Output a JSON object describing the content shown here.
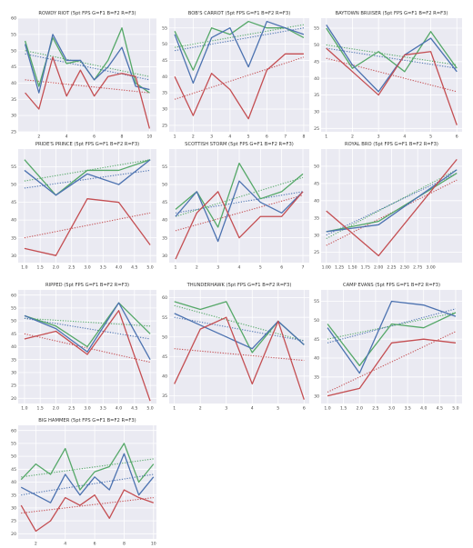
{
  "figure": {
    "colors": {
      "G": "#55a868",
      "B": "#4c72b0",
      "R": "#c44e52",
      "plot_bg": "#eaeaf2",
      "grid": "#ffffff"
    }
  },
  "chart_data": [
    {
      "type": "line",
      "title": "ROWDY RIOT (5pt FPS G=F1 B=F2 R=F3)",
      "x": [
        1,
        2,
        3,
        4,
        5,
        6,
        7,
        8,
        9,
        10
      ],
      "xlim": [
        0.5,
        10.5
      ],
      "ylim": [
        25,
        60
      ],
      "xticks": [
        "2",
        "4",
        "6",
        "8",
        "10"
      ],
      "xtick_vals": [
        2,
        4,
        6,
        8,
        10
      ],
      "yticks": [
        "25",
        "30",
        "35",
        "40",
        "45",
        "50",
        "55",
        "60"
      ],
      "ytick_vals": [
        25,
        30,
        35,
        40,
        45,
        50,
        55,
        60
      ],
      "series": [
        {
          "key": "G",
          "values": [
            53,
            39,
            54,
            46,
            47,
            41,
            47,
            57,
            40,
            37
          ]
        },
        {
          "key": "B",
          "values": [
            52,
            37,
            55,
            47,
            47,
            41,
            45,
            51,
            39,
            38
          ]
        },
        {
          "key": "R",
          "values": [
            37,
            32,
            48,
            36,
            44,
            36,
            42,
            43,
            42,
            26
          ]
        }
      ],
      "trends": [
        {
          "key": "G",
          "start": 50,
          "end": 42
        },
        {
          "key": "B",
          "start": 49,
          "end": 41
        },
        {
          "key": "R",
          "start": 41,
          "end": 37
        }
      ],
      "grid": true
    },
    {
      "type": "line",
      "title": "BOB'S CARROT (5pt FPS G=F1 B=F2 R=F3)",
      "x": [
        1,
        2,
        3,
        4,
        5,
        6,
        7,
        8
      ],
      "xlim": [
        0.7,
        8.3
      ],
      "ylim": [
        23,
        58
      ],
      "xticks": [
        "1",
        "2",
        "3",
        "4",
        "5",
        "6",
        "7",
        "8"
      ],
      "xtick_vals": [
        1,
        2,
        3,
        4,
        5,
        6,
        7,
        8
      ],
      "yticks": [
        "25",
        "30",
        "35",
        "40",
        "45",
        "50",
        "55"
      ],
      "ytick_vals": [
        25,
        30,
        35,
        40,
        45,
        50,
        55
      ],
      "series": [
        {
          "key": "G",
          "values": [
            54,
            42,
            55,
            53,
            57,
            55,
            55,
            52
          ]
        },
        {
          "key": "B",
          "values": [
            53,
            38,
            52,
            55,
            43,
            57,
            55,
            53
          ]
        },
        {
          "key": "R",
          "values": [
            40,
            28,
            41,
            36,
            27,
            42,
            47,
            47
          ]
        }
      ],
      "trends": [
        {
          "key": "G",
          "start": 49,
          "end": 56
        },
        {
          "key": "B",
          "start": 48,
          "end": 55
        },
        {
          "key": "R",
          "start": 33,
          "end": 46
        }
      ],
      "grid": true
    },
    {
      "type": "line",
      "title": "BAYTOWN BRUISER (5pt FPS G=F1 B=F2 R=F3)",
      "x": [
        1,
        2,
        3,
        4,
        5,
        6
      ],
      "xlim": [
        0.8,
        6.2
      ],
      "ylim": [
        24,
        58
      ],
      "xticks": [
        "1",
        "2",
        "3",
        "4",
        "5",
        "6"
      ],
      "xtick_vals": [
        1,
        2,
        3,
        4,
        5,
        6
      ],
      "yticks": [
        "25",
        "30",
        "35",
        "40",
        "45",
        "50",
        "55"
      ],
      "ytick_vals": [
        25,
        30,
        35,
        40,
        45,
        50,
        55
      ],
      "series": [
        {
          "key": "G",
          "values": [
            55,
            43,
            48,
            42,
            54,
            43
          ]
        },
        {
          "key": "B",
          "values": [
            56,
            44,
            36,
            47,
            52,
            42
          ]
        },
        {
          "key": "R",
          "values": [
            49,
            42,
            35,
            47,
            48,
            26
          ]
        }
      ],
      "trends": [
        {
          "key": "G",
          "start": 50,
          "end": 44
        },
        {
          "key": "B",
          "start": 49,
          "end": 43
        },
        {
          "key": "R",
          "start": 46,
          "end": 36
        }
      ],
      "grid": true
    },
    {
      "type": "line",
      "title": "PRIDE'S PRINCE (5pt FPS G=F1 B=F2 R=F3)",
      "x": [
        1.0,
        2.0,
        3.0,
        4.0,
        5.0
      ],
      "xlim": [
        0.8,
        5.2
      ],
      "ylim": [
        28,
        60
      ],
      "xticks": [
        "1.0",
        "1.5",
        "2.0",
        "2.5",
        "3.0",
        "3.5",
        "4.0",
        "4.5",
        "5.0"
      ],
      "xtick_vals": [
        1,
        1.5,
        2,
        2.5,
        3,
        3.5,
        4,
        4.5,
        5
      ],
      "yticks": [
        "30",
        "35",
        "40",
        "45",
        "50",
        "55"
      ],
      "ytick_vals": [
        30,
        35,
        40,
        45,
        50,
        55
      ],
      "series": [
        {
          "key": "G",
          "values": [
            57,
            47,
            54,
            54,
            57
          ]
        },
        {
          "key": "B",
          "values": [
            54,
            47,
            53,
            50,
            57
          ]
        },
        {
          "key": "R",
          "values": [
            32,
            30,
            46,
            45,
            33
          ]
        }
      ],
      "trends": [
        {
          "key": "G",
          "start": 51,
          "end": 57
        },
        {
          "key": "B",
          "start": 49,
          "end": 54
        },
        {
          "key": "R",
          "start": 35,
          "end": 42
        }
      ],
      "grid": true
    },
    {
      "type": "line",
      "title": "SCOTTISH STORM (5pt FPS G=F1 B=F2 R=F3)",
      "x": [
        1,
        2,
        3,
        4,
        5,
        6,
        7
      ],
      "xlim": [
        0.7,
        7.3
      ],
      "ylim": [
        28,
        60
      ],
      "xticks": [
        "1",
        "2",
        "3",
        "4",
        "5",
        "6",
        "7"
      ],
      "xtick_vals": [
        1,
        2,
        3,
        4,
        5,
        6,
        7
      ],
      "yticks": [
        "30",
        "35",
        "40",
        "45",
        "50",
        "55"
      ],
      "ytick_vals": [
        30,
        35,
        40,
        45,
        50,
        55
      ],
      "series": [
        {
          "key": "G",
          "values": [
            43,
            48,
            38,
            56,
            46,
            48,
            53
          ]
        },
        {
          "key": "B",
          "values": [
            41,
            48,
            34,
            51,
            45,
            42,
            48
          ]
        },
        {
          "key": "R",
          "values": [
            29,
            42,
            48,
            35,
            41,
            41,
            48
          ]
        }
      ],
      "trends": [
        {
          "key": "G",
          "start": 41,
          "end": 52
        },
        {
          "key": "B",
          "start": 42,
          "end": 48
        },
        {
          "key": "R",
          "start": 37,
          "end": 47
        }
      ],
      "grid": true
    },
    {
      "type": "line",
      "title": "ROYAL BRO (5pt FPS G=F1 B=F2 R=F3)",
      "x": [
        1.0,
        2.0,
        3.5
      ],
      "xlim": [
        0.9,
        3.6
      ],
      "ylim": [
        22,
        55
      ],
      "xticks": [
        "1.00",
        "1.25",
        "1.50",
        "1.75",
        "2.00",
        "2.25",
        "2.50",
        "2.75",
        "3.00"
      ],
      "xtick_vals": [
        1,
        1.25,
        1.5,
        1.75,
        2,
        2.25,
        2.5,
        2.75,
        3
      ],
      "yticks": [
        "25",
        "30",
        "35",
        "40",
        "45",
        "50"
      ],
      "ytick_vals": [
        25,
        30,
        35,
        40,
        45,
        50
      ],
      "series": [
        {
          "key": "G",
          "values": [
            31,
            34,
            48
          ]
        },
        {
          "key": "B",
          "values": [
            31,
            33,
            49
          ]
        },
        {
          "key": "R",
          "values": [
            37,
            24,
            52
          ]
        }
      ],
      "trends": [
        {
          "key": "G",
          "start": 29,
          "end": 49
        },
        {
          "key": "B",
          "start": 30,
          "end": 48
        },
        {
          "key": "R",
          "start": 27,
          "end": 46
        }
      ],
      "grid": true
    },
    {
      "type": "line",
      "title": "RIPPED (5pt FPS G=F1 B=F2 R=F3)",
      "x": [
        1.0,
        2.0,
        3.0,
        4.0,
        5.0
      ],
      "xlim": [
        0.8,
        5.2
      ],
      "ylim": [
        18,
        62
      ],
      "xticks": [
        "1.0",
        "1.5",
        "2.0",
        "2.5",
        "3.0",
        "3.5",
        "4.0",
        "4.5",
        "5.0"
      ],
      "xtick_vals": [
        1,
        1.5,
        2,
        2.5,
        3,
        3.5,
        4,
        4.5,
        5
      ],
      "yticks": [
        "20",
        "25",
        "30",
        "35",
        "40",
        "45",
        "50",
        "55",
        "60"
      ],
      "ytick_vals": [
        20,
        25,
        30,
        35,
        40,
        45,
        50,
        55,
        60
      ],
      "series": [
        {
          "key": "G",
          "values": [
            52,
            48,
            40,
            57,
            45
          ]
        },
        {
          "key": "B",
          "values": [
            52,
            47,
            38,
            57,
            35
          ]
        },
        {
          "key": "R",
          "values": [
            43,
            46,
            37,
            54,
            19
          ]
        }
      ],
      "trends": [
        {
          "key": "G",
          "start": 51,
          "end": 48
        },
        {
          "key": "B",
          "start": 51,
          "end": 43
        },
        {
          "key": "R",
          "start": 45,
          "end": 34
        }
      ],
      "grid": true
    },
    {
      "type": "line",
      "title": "THUNDERHAWK (5pt FPS G=F1 B=F2 R=F3)",
      "x": [
        1,
        2,
        3,
        4,
        5,
        6
      ],
      "xlim": [
        0.8,
        6.2
      ],
      "ylim": [
        33,
        62
      ],
      "xticks": [
        "1",
        "2",
        "3",
        "4",
        "5",
        "6"
      ],
      "xtick_vals": [
        1,
        2,
        3,
        4,
        5,
        6
      ],
      "yticks": [
        "35",
        "40",
        "45",
        "50",
        "55",
        "60"
      ],
      "ytick_vals": [
        35,
        40,
        45,
        50,
        55,
        60
      ],
      "series": [
        {
          "key": "G",
          "values": [
            59,
            57,
            59,
            46,
            54,
            48
          ]
        },
        {
          "key": "B",
          "values": [
            56,
            53,
            50,
            47,
            54,
            48
          ]
        },
        {
          "key": "R",
          "values": [
            38,
            52,
            55,
            38,
            54,
            34
          ]
        }
      ],
      "trends": [
        {
          "key": "G",
          "start": 58,
          "end": 49
        },
        {
          "key": "B",
          "start": 55,
          "end": 49
        },
        {
          "key": "R",
          "start": 47,
          "end": 44
        }
      ],
      "grid": true
    },
    {
      "type": "line",
      "title": "CAMP EVANS (5pt FPS G=F1 B=F2 R=F3)",
      "x": [
        1.0,
        2.0,
        3.0,
        4.0,
        5.0
      ],
      "xlim": [
        0.8,
        5.2
      ],
      "ylim": [
        28,
        58
      ],
      "xticks": [
        "1.0",
        "1.5",
        "2.0",
        "2.5",
        "3.0",
        "3.5",
        "4.0",
        "4.5",
        "5.0"
      ],
      "xtick_vals": [
        1,
        1.5,
        2,
        2.5,
        3,
        3.5,
        4,
        4.5,
        5
      ],
      "yticks": [
        "30",
        "35",
        "40",
        "45",
        "50",
        "55"
      ],
      "ytick_vals": [
        30,
        35,
        40,
        45,
        50,
        55
      ],
      "series": [
        {
          "key": "G",
          "values": [
            49,
            38,
            49,
            48,
            52
          ]
        },
        {
          "key": "B",
          "values": [
            48,
            36,
            55,
            54,
            51
          ]
        },
        {
          "key": "R",
          "values": [
            30,
            32,
            44,
            45,
            44
          ]
        }
      ],
      "trends": [
        {
          "key": "G",
          "start": 45,
          "end": 52
        },
        {
          "key": "B",
          "start": 44,
          "end": 53
        },
        {
          "key": "R",
          "start": 31,
          "end": 47
        }
      ],
      "grid": true
    },
    {
      "type": "line",
      "title": "BIG HAMMER (5pt FPS G=F1 B=F2 R=F3)",
      "x": [
        1,
        2,
        3,
        4,
        5,
        6,
        7,
        8,
        9,
        10
      ],
      "xlim": [
        0.8,
        10.2
      ],
      "ylim": [
        18,
        62
      ],
      "xticks": [
        "2",
        "4",
        "6",
        "8",
        "10"
      ],
      "xtick_vals": [
        2,
        4,
        6,
        8,
        10
      ],
      "yticks": [
        "20",
        "25",
        "30",
        "35",
        "40",
        "45",
        "50",
        "55",
        "60"
      ],
      "ytick_vals": [
        20,
        25,
        30,
        35,
        40,
        45,
        50,
        55,
        60
      ],
      "series": [
        {
          "key": "G",
          "values": [
            41,
            47,
            43,
            53,
            37,
            44,
            46,
            55,
            40,
            47
          ]
        },
        {
          "key": "B",
          "values": [
            38,
            35,
            32,
            43,
            35,
            42,
            37,
            51,
            35,
            42
          ]
        },
        {
          "key": "R",
          "values": [
            31,
            21,
            25,
            34,
            31,
            35,
            26,
            37,
            34,
            32
          ]
        }
      ],
      "trends": [
        {
          "key": "G",
          "start": 42,
          "end": 49
        },
        {
          "key": "B",
          "start": 35,
          "end": 43
        },
        {
          "key": "R",
          "start": 28,
          "end": 34
        }
      ],
      "grid": true
    }
  ]
}
